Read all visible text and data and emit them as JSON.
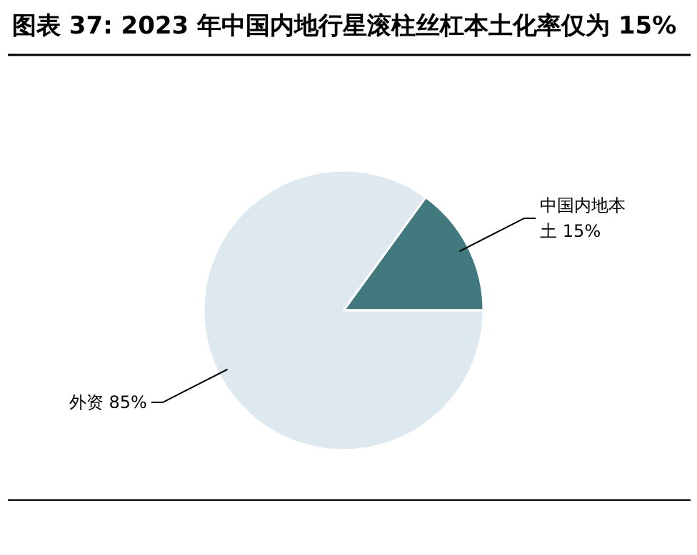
{
  "chart_data": {
    "type": "pie",
    "title": "图表 37: 2023 年中国内地行星滚柱丝杠本土化率仅为 15%",
    "categories": [
      "中国内地本土",
      "外资"
    ],
    "values": [
      15,
      85
    ],
    "value_labels": [
      "15%",
      "85%"
    ],
    "colors": [
      "#41797f",
      "#dde9ee"
    ]
  }
}
